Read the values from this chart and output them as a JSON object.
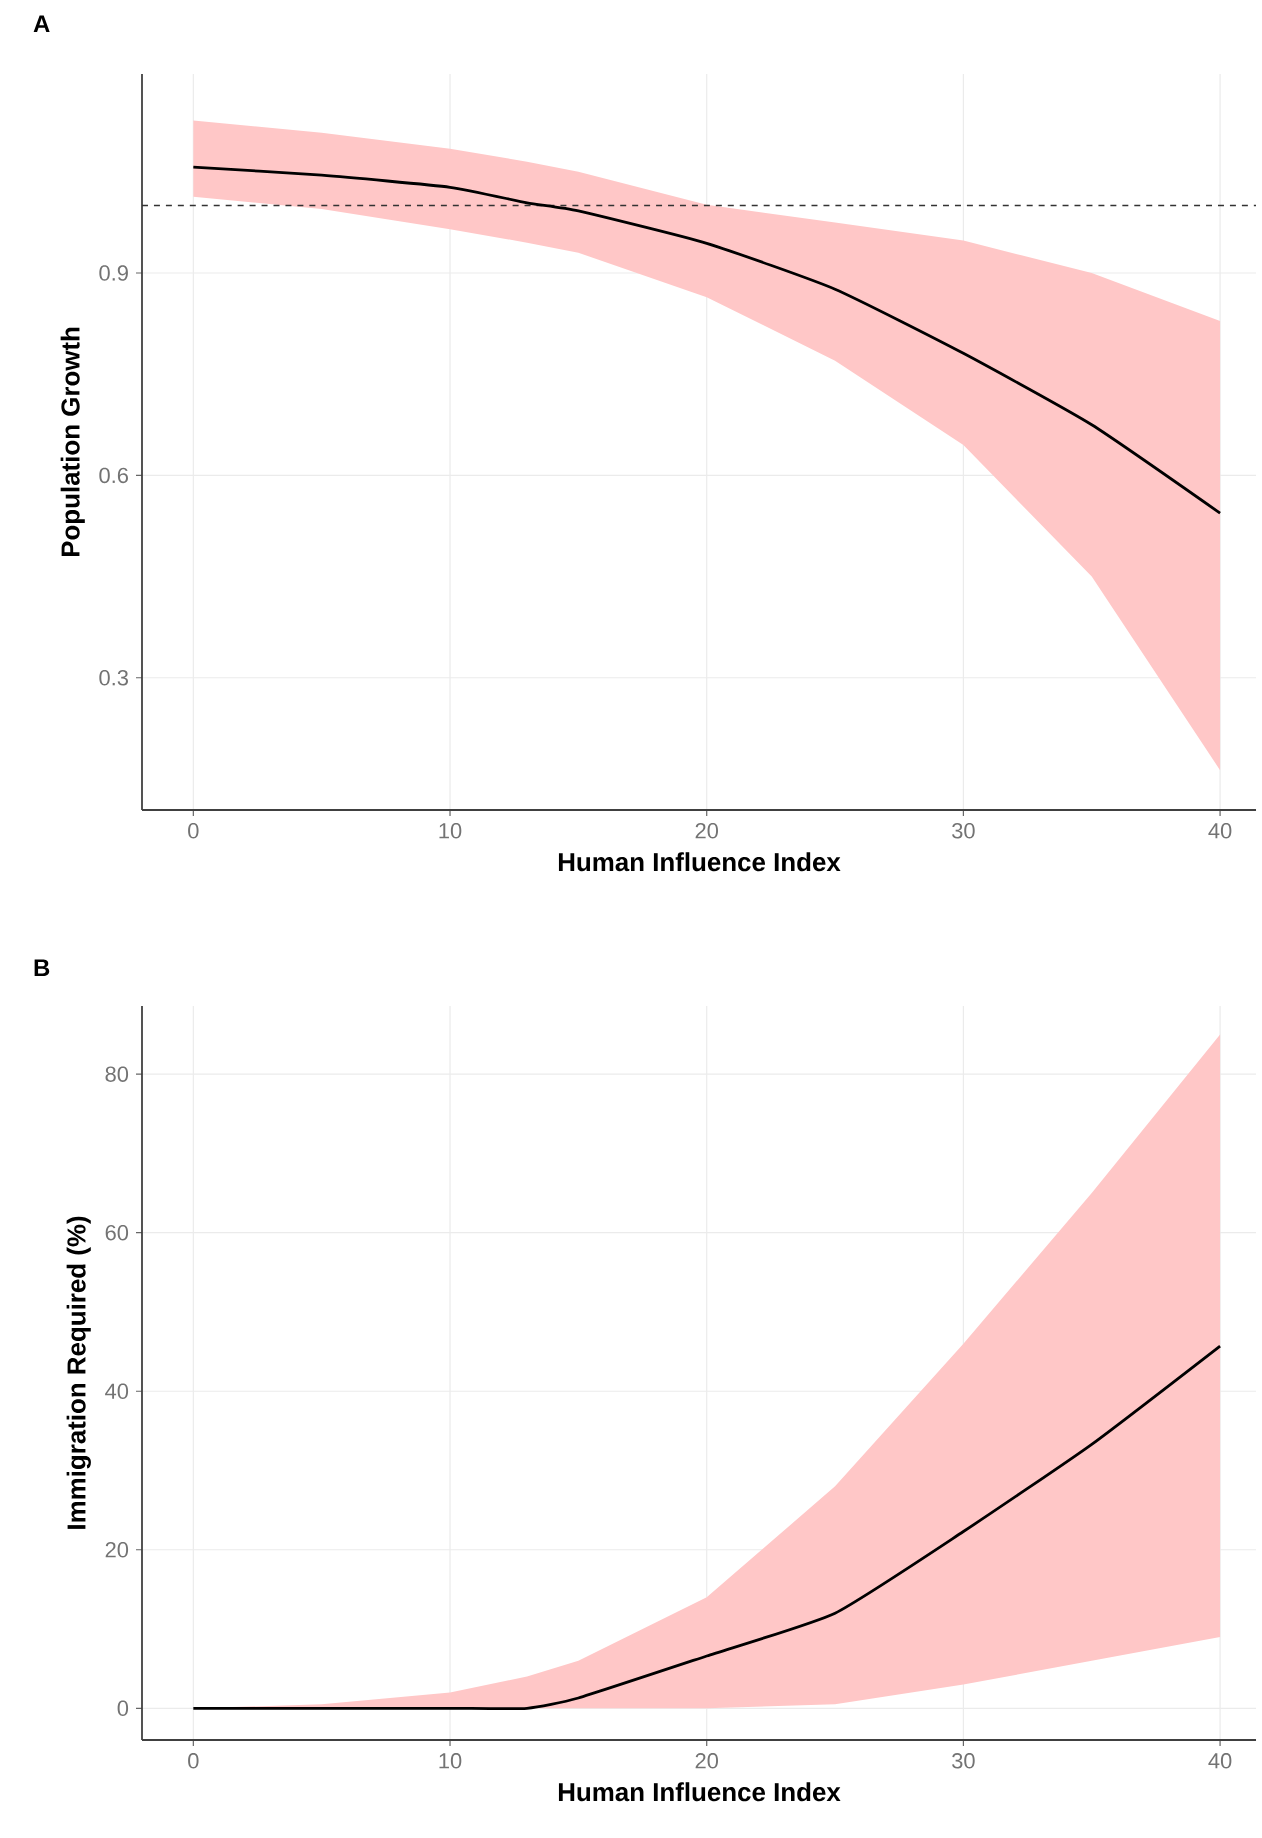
{
  "chart_data": [
    {
      "type": "line",
      "title": "A",
      "xlabel": "Human Influence Index",
      "ylabel": "Population Growth",
      "x": [
        0,
        5,
        10,
        13,
        15,
        20,
        25,
        30,
        35,
        40
      ],
      "series": [
        {
          "color": "#000000",
          "values": [
            1.057,
            1.045,
            1.027,
            1.004,
            0.992,
            0.944,
            0.876,
            0.781,
            0.675,
            0.544
          ],
          "lower": [
            1.013,
            0.995,
            0.965,
            0.945,
            0.93,
            0.864,
            0.77,
            0.645,
            0.45,
            0.163
          ],
          "upper": [
            1.126,
            1.108,
            1.084,
            1.065,
            1.05,
            1.001,
            0.975,
            0.948,
            0.9,
            0.829
          ]
        }
      ],
      "xlim": [
        -2,
        41.4
      ],
      "ylim": [
        0.104,
        1.195
      ],
      "xticks": [
        0,
        10,
        20,
        30,
        40
      ],
      "yticks": [
        0.3,
        0.6,
        0.9
      ],
      "grid": true,
      "line_style": "solid",
      "ref_lines": [
        {
          "axis": "y",
          "value": 1.0,
          "line_style": "dashed",
          "color": "#333333"
        }
      ]
    },
    {
      "type": "line",
      "title": "B",
      "xlabel": "Human Influence Index",
      "ylabel": "Immigration Required (%)",
      "x": [
        0,
        5,
        10,
        13,
        15,
        20,
        25,
        30,
        35,
        40
      ],
      "series": [
        {
          "color": "#000000",
          "values": [
            0,
            0,
            0,
            0,
            1.3,
            6.6,
            12,
            22.3,
            33.3,
            45.7
          ],
          "lower": [
            0,
            0,
            0,
            0,
            0,
            0,
            0.5,
            3,
            6,
            9
          ],
          "upper": [
            0,
            0.5,
            2,
            4,
            6,
            14,
            28,
            46,
            65,
            85
          ]
        }
      ],
      "xlim": [
        -2,
        41.4
      ],
      "ylim": [
        -4,
        88.6
      ],
      "xticks": [
        0,
        10,
        20,
        30,
        40
      ],
      "yticks": [
        0,
        20,
        40,
        60,
        80
      ],
      "grid": true,
      "line_style": "solid"
    }
  ]
}
